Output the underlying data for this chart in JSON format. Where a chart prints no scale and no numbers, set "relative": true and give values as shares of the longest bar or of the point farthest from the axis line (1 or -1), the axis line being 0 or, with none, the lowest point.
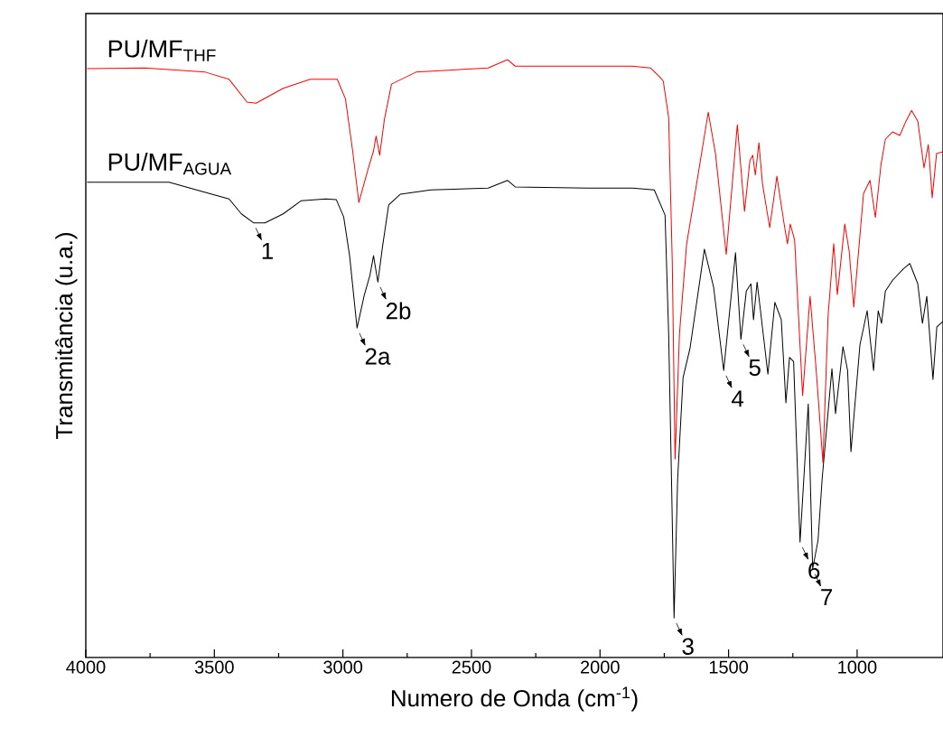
{
  "chart_data": {
    "type": "line",
    "relative": true,
    "xlabel": "Numero de Onda (cm$^{-1}$)",
    "ylabel": "Transmitância (u.a.)",
    "xlim": [
      4000,
      666
    ],
    "xticks": [
      4000,
      3500,
      3000,
      2500,
      2000,
      1500,
      1000
    ],
    "series": [
      {
        "name": "PU/MF$_{THF}$",
        "color": "#ff0000",
        "x": [
          3995,
          3770,
          3535,
          3443,
          3373,
          3338,
          3232,
          3127,
          3022,
          2990,
          2962,
          2938,
          2902,
          2881,
          2871,
          2857,
          2839,
          2811,
          2716,
          2435,
          2360,
          2330,
          2049,
          1874,
          1804,
          1768,
          1754,
          1733,
          1719,
          1708,
          1691,
          1663,
          1635,
          1579,
          1551,
          1509,
          1466,
          1438,
          1417,
          1406,
          1396,
          1382,
          1368,
          1340,
          1312,
          1285,
          1271,
          1260,
          1243,
          1212,
          1183,
          1159,
          1133,
          1113,
          1091,
          1077,
          1048,
          1031,
          1013,
          975,
          950,
          929,
          907,
          890,
          862,
          834,
          810,
          788,
          764,
          740,
          723,
          708,
          691,
          666
        ],
        "values": [
          0.985,
          0.986,
          0.979,
          0.967,
          0.929,
          0.927,
          0.952,
          0.967,
          0.967,
          0.934,
          0.847,
          0.761,
          0.817,
          0.847,
          0.872,
          0.84,
          0.899,
          0.959,
          0.979,
          0.986,
          1.0,
          0.989,
          0.989,
          0.989,
          0.986,
          0.971,
          0.964,
          0.903,
          0.662,
          0.332,
          0.541,
          0.692,
          0.764,
          0.912,
          0.843,
          0.674,
          0.891,
          0.746,
          0.831,
          0.84,
          0.807,
          0.861,
          0.792,
          0.719,
          0.805,
          0.728,
          0.692,
          0.725,
          0.698,
          0.438,
          0.604,
          0.48,
          0.326,
          0.571,
          0.692,
          0.607,
          0.725,
          0.68,
          0.586,
          0.776,
          0.798,
          0.736,
          0.825,
          0.867,
          0.879,
          0.873,
          0.897,
          0.915,
          0.897,
          0.819,
          0.858,
          0.769,
          0.843,
          0.846
        ]
      },
      {
        "name": "PU/MF$_{AGUA}$",
        "color": "#000000",
        "x": [
          3995,
          3676,
          3535,
          3443,
          3395,
          3348,
          3303,
          3232,
          3162,
          3067,
          3026,
          2997,
          2974,
          2945,
          2917,
          2895,
          2881,
          2864,
          2846,
          2822,
          2776,
          2658,
          2435,
          2360,
          2330,
          2049,
          1874,
          1789,
          1747,
          1733,
          1722,
          1712,
          1698,
          1677,
          1650,
          1594,
          1558,
          1519,
          1473,
          1452,
          1431,
          1413,
          1403,
          1389,
          1375,
          1347,
          1320,
          1295,
          1277,
          1263,
          1247,
          1222,
          1190,
          1173,
          1152,
          1136,
          1098,
          1084,
          1055,
          1037,
          1024,
          989,
          961,
          936,
          918,
          905,
          890,
          862,
          820,
          795,
          764,
          746,
          729,
          705,
          690,
          666
        ],
        "values": [
          0.795,
          0.795,
          0.778,
          0.767,
          0.742,
          0.727,
          0.727,
          0.742,
          0.764,
          0.767,
          0.766,
          0.737,
          0.672,
          0.551,
          0.606,
          0.639,
          0.672,
          0.628,
          0.687,
          0.757,
          0.775,
          0.782,
          0.785,
          0.798,
          0.787,
          0.785,
          0.785,
          0.782,
          0.74,
          0.541,
          0.299,
          0.066,
          0.299,
          0.468,
          0.517,
          0.683,
          0.619,
          0.48,
          0.677,
          0.532,
          0.613,
          0.625,
          0.565,
          0.628,
          0.577,
          0.474,
          0.594,
          0.565,
          0.426,
          0.502,
          0.495,
          0.193,
          0.424,
          0.148,
          0.196,
          0.299,
          0.483,
          0.408,
          0.52,
          0.48,
          0.344,
          0.523,
          0.58,
          0.48,
          0.58,
          0.559,
          0.613,
          0.631,
          0.65,
          0.659,
          0.625,
          0.559,
          0.604,
          0.465,
          0.553,
          0.562
        ]
      }
    ],
    "annotations": [
      {
        "text": "1",
        "x": 3348,
        "y": 0.727
      },
      {
        "text": "2a",
        "x": 2945,
        "y": 0.551
      },
      {
        "text": "2b",
        "x": 2864,
        "y": 0.628
      },
      {
        "text": "3",
        "x": 1712,
        "y": 0.066
      },
      {
        "text": "4",
        "x": 1519,
        "y": 0.48
      },
      {
        "text": "5",
        "x": 1452,
        "y": 0.532
      },
      {
        "text": "6",
        "x": 1222,
        "y": 0.193
      },
      {
        "text": "7",
        "x": 1173,
        "y": 0.148
      }
    ]
  }
}
